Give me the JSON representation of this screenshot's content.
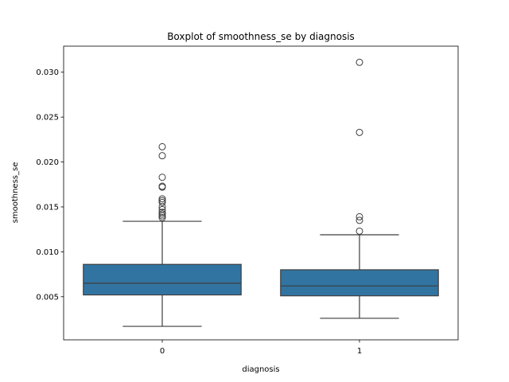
{
  "chart_data": {
    "type": "boxplot",
    "title": "Boxplot of smoothness_se by diagnosis",
    "xlabel": "diagnosis",
    "ylabel": "smoothness_se",
    "categories": [
      "0",
      "1"
    ],
    "ylim": [
      0.0002,
      0.0329
    ],
    "yticks": [
      0.005,
      0.01,
      0.015,
      0.02,
      0.025,
      0.03
    ],
    "ytick_labels": [
      "0.005",
      "0.010",
      "0.015",
      "0.020",
      "0.025",
      "0.030"
    ],
    "grid": false,
    "box_color": "#3274a1",
    "line_color": "#3d3d3d",
    "boxes": [
      {
        "category": "0",
        "whisker_low": 0.0017,
        "q1": 0.0052,
        "median": 0.0065,
        "q3": 0.0086,
        "whisker_high": 0.0134,
        "outliers": [
          0.0217,
          0.0207,
          0.0183,
          0.0173,
          0.0172,
          0.0159,
          0.0157,
          0.0155,
          0.015,
          0.0147,
          0.0144,
          0.0142,
          0.014,
          0.0138
        ]
      },
      {
        "category": "1",
        "whisker_low": 0.0026,
        "q1": 0.0051,
        "median": 0.0062,
        "q3": 0.008,
        "whisker_high": 0.0119,
        "outliers": [
          0.0311,
          0.0233,
          0.0139,
          0.0135,
          0.0123
        ]
      }
    ]
  }
}
